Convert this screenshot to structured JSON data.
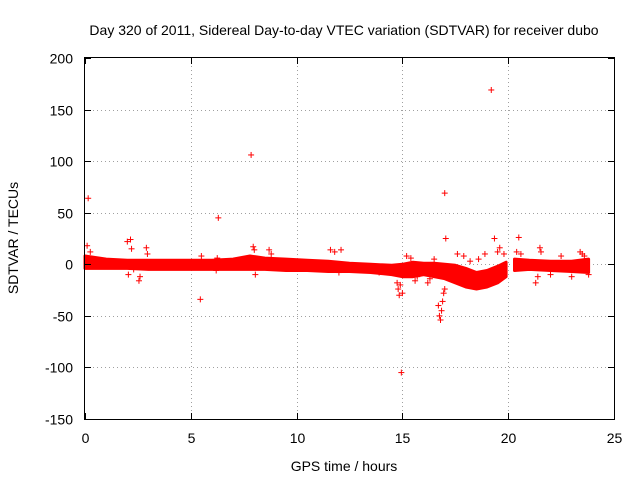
{
  "chart_data": {
    "type": "scatter",
    "title": "Day 320 of 2011, Sidereal Day-to-day VTEC variation (SDTVAR) for receiver dubo",
    "xlabel": "GPS time / hours",
    "ylabel": "SDTVAR / TECUs",
    "xlim": [
      0,
      25
    ],
    "ylim": [
      -150,
      200
    ],
    "x_ticks": [
      0,
      5,
      10,
      15,
      20,
      25
    ],
    "y_ticks": [
      -150,
      -100,
      -50,
      0,
      50,
      100,
      150,
      200
    ],
    "grid": true,
    "marker": "plus",
    "color": "#ff0000",
    "series": [
      {
        "name": "SDTVAR",
        "dense_band": {
          "x": [
            0.0,
            1,
            2,
            3,
            4,
            5,
            6,
            7,
            7.8,
            8.5,
            9.5,
            10.5,
            11.5,
            12.5,
            13.5,
            14.5,
            15.0,
            15.5,
            16.0,
            16.5,
            17.0,
            17.5,
            18.0,
            18.5,
            19.0,
            19.5,
            19.9
          ],
          "upper": [
            8,
            5,
            4,
            4,
            4,
            4,
            4,
            5,
            8,
            6,
            5,
            4,
            3,
            1,
            0,
            -1,
            0,
            2,
            1,
            1,
            0,
            -1,
            -4,
            -8,
            -6,
            -2,
            2
          ],
          "lower": [
            -4,
            -4,
            -4,
            -5,
            -5,
            -5,
            -5,
            -5,
            -5,
            -5,
            -6,
            -6,
            -7,
            -7,
            -8,
            -10,
            -12,
            -12,
            -10,
            -12,
            -14,
            -18,
            -22,
            -24,
            -22,
            -18,
            -12
          ]
        },
        "dense_band_2": {
          "x": [
            20.3,
            21,
            22,
            23,
            23.8
          ],
          "upper": [
            5,
            4,
            3,
            3,
            5
          ],
          "lower": [
            -6,
            -5,
            -6,
            -7,
            -8
          ]
        },
        "points": [
          {
            "x": 0.15,
            "y": 64
          },
          {
            "x": 0.1,
            "y": 18
          },
          {
            "x": 0.25,
            "y": 12
          },
          {
            "x": 2.0,
            "y": 22
          },
          {
            "x": 2.15,
            "y": 24
          },
          {
            "x": 2.05,
            "y": -10
          },
          {
            "x": 2.2,
            "y": 15
          },
          {
            "x": 2.3,
            "y": -5
          },
          {
            "x": 2.6,
            "y": -12
          },
          {
            "x": 2.55,
            "y": -16
          },
          {
            "x": 2.9,
            "y": 16
          },
          {
            "x": 2.95,
            "y": 10
          },
          {
            "x": 5.45,
            "y": -34
          },
          {
            "x": 5.5,
            "y": 8
          },
          {
            "x": 6.3,
            "y": 45
          },
          {
            "x": 6.2,
            "y": -6
          },
          {
            "x": 6.25,
            "y": 6
          },
          {
            "x": 7.85,
            "y": 106
          },
          {
            "x": 7.95,
            "y": 17
          },
          {
            "x": 8.0,
            "y": 14
          },
          {
            "x": 8.05,
            "y": -10
          },
          {
            "x": 8.7,
            "y": 14
          },
          {
            "x": 8.8,
            "y": 10
          },
          {
            "x": 11.6,
            "y": 14
          },
          {
            "x": 11.8,
            "y": 12
          },
          {
            "x": 12.1,
            "y": 14
          },
          {
            "x": 12.0,
            "y": -8
          },
          {
            "x": 13.2,
            "y": -6
          },
          {
            "x": 13.9,
            "y": -8
          },
          {
            "x": 14.75,
            "y": -18
          },
          {
            "x": 14.8,
            "y": -24
          },
          {
            "x": 14.85,
            "y": -30
          },
          {
            "x": 14.9,
            "y": -20
          },
          {
            "x": 15.0,
            "y": -28
          },
          {
            "x": 14.95,
            "y": -105
          },
          {
            "x": 15.2,
            "y": 8
          },
          {
            "x": 15.4,
            "y": 6
          },
          {
            "x": 15.6,
            "y": -16
          },
          {
            "x": 15.7,
            "y": -12
          },
          {
            "x": 16.2,
            "y": -18
          },
          {
            "x": 16.3,
            "y": -14
          },
          {
            "x": 16.5,
            "y": 5
          },
          {
            "x": 16.7,
            "y": -40
          },
          {
            "x": 16.75,
            "y": -50
          },
          {
            "x": 16.8,
            "y": -54
          },
          {
            "x": 16.85,
            "y": -45
          },
          {
            "x": 16.9,
            "y": -36
          },
          {
            "x": 16.95,
            "y": -28
          },
          {
            "x": 17.0,
            "y": -24
          },
          {
            "x": 17.15,
            "y": -6
          },
          {
            "x": 17.0,
            "y": 69
          },
          {
            "x": 17.05,
            "y": 25
          },
          {
            "x": 17.6,
            "y": 10
          },
          {
            "x": 17.9,
            "y": 8
          },
          {
            "x": 18.2,
            "y": 3
          },
          {
            "x": 18.6,
            "y": 5
          },
          {
            "x": 18.9,
            "y": 10
          },
          {
            "x": 19.2,
            "y": 169
          },
          {
            "x": 19.35,
            "y": 25
          },
          {
            "x": 19.5,
            "y": 12
          },
          {
            "x": 19.6,
            "y": 16
          },
          {
            "x": 19.8,
            "y": 10
          },
          {
            "x": 20.5,
            "y": 26
          },
          {
            "x": 20.4,
            "y": 12
          },
          {
            "x": 20.6,
            "y": 10
          },
          {
            "x": 21.3,
            "y": -18
          },
          {
            "x": 21.4,
            "y": -12
          },
          {
            "x": 21.5,
            "y": 16
          },
          {
            "x": 21.55,
            "y": 12
          },
          {
            "x": 22.0,
            "y": -10
          },
          {
            "x": 22.5,
            "y": 8
          },
          {
            "x": 23.0,
            "y": -12
          },
          {
            "x": 23.4,
            "y": 12
          },
          {
            "x": 23.5,
            "y": 10
          },
          {
            "x": 23.6,
            "y": 8
          },
          {
            "x": 23.8,
            "y": -10
          },
          {
            "x": 23.7,
            "y": -6
          }
        ]
      }
    ]
  }
}
